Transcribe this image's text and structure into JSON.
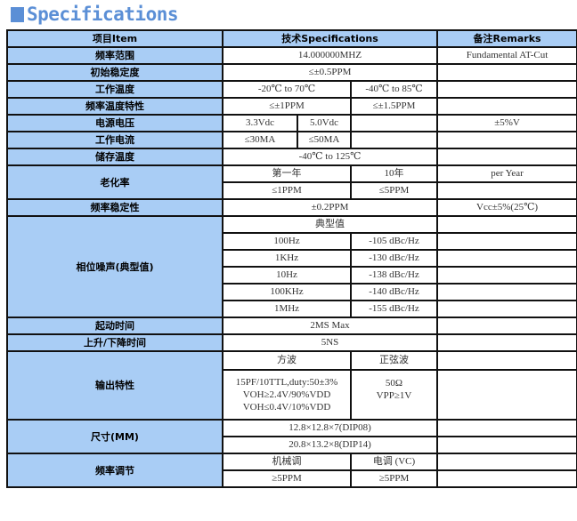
{
  "title": "Specifications",
  "accent": "#5b8fd6",
  "header_bg": "#a9cdf5",
  "header": {
    "item": "项目Item",
    "spec": "技术Specifications",
    "remarks": "备注Remarks"
  },
  "rows": {
    "freq_range": {
      "label": "频率范围",
      "value": "14.000000MHZ",
      "remark": "Fundamental AT-Cut"
    },
    "initial_stability": {
      "label": "初始稳定度",
      "value": "≤±0.5PPM"
    },
    "operating_temp": {
      "label": "工作温度",
      "v1": "-20℃ to 70℃",
      "v2": "-40℃ to 85℃"
    },
    "freq_temp": {
      "label": "频率温度特性",
      "v1": "≤±1PPM",
      "v2": "≤±1.5PPM"
    },
    "supply_voltage": {
      "label": "电源电压",
      "v1": "3.3Vdc",
      "v2": "5.0Vdc",
      "remark": "±5%V"
    },
    "operating_current": {
      "label": "工作电流",
      "v1": "≤30MA",
      "v2": "≤50MA"
    },
    "storage_temp": {
      "label": "储存温度",
      "value": "-40℃ to 125℃"
    },
    "aging": {
      "label": "老化率",
      "h1": "第一年",
      "h2": "10年",
      "remark": "per Year",
      "v1": "≤1PPM",
      "v2": "≤5PPM"
    },
    "freq_stability": {
      "label": "频率稳定性",
      "value": "±0.2PPM",
      "remark": "Vcc±5%(25℃)"
    },
    "phase_noise": {
      "label": "相位噪声(典型值)",
      "sub": "典型值",
      "items": [
        {
          "offset": "100Hz",
          "value": "-105 dBc/Hz"
        },
        {
          "offset": "1KHz",
          "value": "-130 dBc/Hz"
        },
        {
          "offset": "10Hz",
          "value": "-138 dBc/Hz"
        },
        {
          "offset": "100KHz",
          "value": "-140 dBc/Hz"
        },
        {
          "offset": "1MHz",
          "value": "-155 dBc/Hz"
        }
      ]
    },
    "startup": {
      "label": "起动时间",
      "value": "2MS Max"
    },
    "rise_fall": {
      "label": "上升/下降时间",
      "value": "5NS"
    },
    "output": {
      "label": "输出特性",
      "h1": "方波",
      "h2": "正弦波",
      "square": [
        "15PF/10TTL,duty:50±3%",
        "VOH≥2.4V/90%VDD",
        "VOH≤0.4V/10%VDD"
      ],
      "sine": [
        "50Ω",
        "VPP≥1V"
      ]
    },
    "size": {
      "label": "尺寸(MM)",
      "v1": "12.8×12.8×7(DIP08)",
      "v2": "20.8×13.2×8(DIP14)"
    },
    "tuning": {
      "label": "频率调节",
      "h1": "机械调",
      "h2": "电调 (VC)",
      "v1": "≥5PPM",
      "v2": "≥5PPM"
    }
  }
}
